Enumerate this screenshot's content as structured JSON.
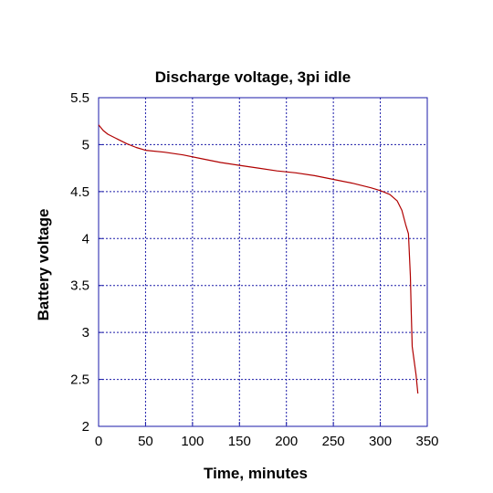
{
  "chart_data": {
    "type": "line",
    "title": "Discharge voltage, 3pi idle",
    "xlabel": "Time, minutes",
    "ylabel": "Battery voltage",
    "xlim": [
      0,
      350
    ],
    "ylim": [
      2,
      5.5
    ],
    "xticks": [
      0,
      50,
      100,
      150,
      200,
      250,
      300,
      350
    ],
    "yticks": [
      2,
      2.5,
      3,
      3.5,
      4,
      4.5,
      5,
      5.5
    ],
    "xtick_labels": [
      "0",
      "50",
      "100",
      "150",
      "200",
      "250",
      "300",
      "350"
    ],
    "ytick_labels": [
      "2",
      "2.5",
      "3",
      "3.5",
      "4",
      "4.5",
      "5",
      "5.5"
    ],
    "grid": true,
    "series": [
      {
        "color": "#b00000",
        "x": [
          0,
          5,
          10,
          20,
          30,
          40,
          50,
          70,
          90,
          110,
          130,
          150,
          170,
          190,
          210,
          230,
          250,
          270,
          290,
          300,
          310,
          318,
          323,
          327,
          330,
          332,
          333,
          334,
          336,
          338,
          340
        ],
        "y": [
          5.21,
          5.15,
          5.11,
          5.06,
          5.01,
          4.97,
          4.94,
          4.92,
          4.89,
          4.85,
          4.81,
          4.78,
          4.75,
          4.72,
          4.7,
          4.67,
          4.63,
          4.59,
          4.54,
          4.51,
          4.47,
          4.4,
          4.3,
          4.15,
          4.05,
          3.6,
          3.2,
          2.85,
          2.7,
          2.55,
          2.35
        ]
      }
    ]
  }
}
